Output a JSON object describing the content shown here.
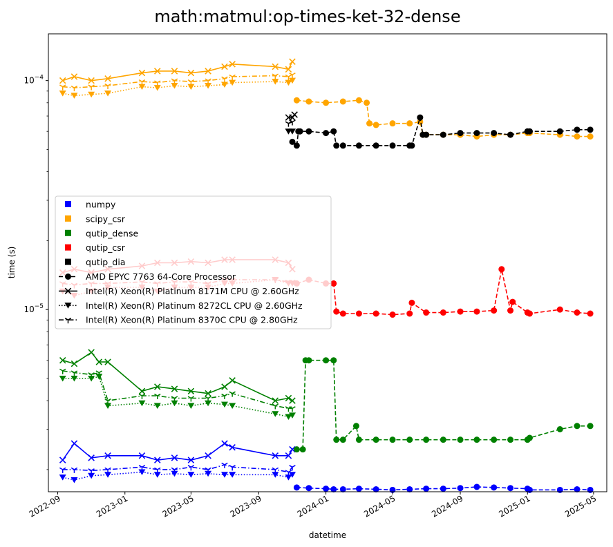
{
  "chart_data": {
    "type": "line",
    "title": "math:matmul:op-times-ket-32-dense",
    "xlabel": "datetime",
    "ylabel": "time (s)",
    "yscale": "log",
    "xlim": [
      "2022-08-15",
      "2025-05-25"
    ],
    "ylim": [
      1.6e-06,
      0.00016
    ],
    "x_tick_labels": [
      "2022-09",
      "2023-01",
      "2023-05",
      "2023-09",
      "2024-01",
      "2024-05",
      "2024-09",
      "2025-01",
      "2025-05"
    ],
    "y_tick_labels": [
      {
        "value": 1e-05,
        "base": "10",
        "exp": "−5"
      },
      {
        "value": 0.0001,
        "base": "10",
        "exp": "−4"
      }
    ],
    "grid": false,
    "legend_position": "center-left",
    "colors": {
      "numpy": "#0000ff",
      "scipy_csr": "#ffa500",
      "qutip_dense": "#008000",
      "qutip_csr": "#ff0000",
      "qutip_dia": "#000000"
    },
    "legend": [
      {
        "label": "numpy",
        "kind": "color",
        "color": "#0000ff"
      },
      {
        "label": "scipy_csr",
        "kind": "color",
        "color": "#ffa500"
      },
      {
        "label": "qutip_dense",
        "kind": "color",
        "color": "#008000"
      },
      {
        "label": "qutip_csr",
        "kind": "color",
        "color": "#ff0000"
      },
      {
        "label": "qutip_dia",
        "kind": "color",
        "color": "#000000"
      },
      {
        "label": "AMD EPYC 7763 64-Core Processor",
        "kind": "cpu",
        "dash": "dashed",
        "marker": "circle"
      },
      {
        "label": "Intel(R) Xeon(R) Platinum 8171M CPU @ 2.60GHz",
        "kind": "cpu",
        "dash": "solid",
        "marker": "x"
      },
      {
        "label": "Intel(R) Xeon(R) Platinum 8272CL CPU @ 2.60GHz",
        "kind": "cpu",
        "dash": "dotted",
        "marker": "triangle_down"
      },
      {
        "label": "Intel(R) Xeon(R) Platinum 8370C CPU @ 2.80GHz",
        "kind": "cpu",
        "dash": "dashdot",
        "marker": "tri_down"
      }
    ],
    "series": [
      {
        "library": "numpy",
        "cpu": "AMD EPYC 7763 64-Core Processor",
        "x": [
          "2023-11-09",
          "2023-12-01",
          "2024-01-01",
          "2024-01-15",
          "2024-02-01",
          "2024-03-01",
          "2024-04-01",
          "2024-05-01",
          "2024-06-01",
          "2024-07-01",
          "2024-08-01",
          "2024-09-01",
          "2024-10-01",
          "2024-11-01",
          "2024-12-01",
          "2025-01-01",
          "2025-01-05",
          "2025-03-01",
          "2025-04-01",
          "2025-04-25"
        ],
        "y": [
          1.67e-06,
          1.66e-06,
          1.65e-06,
          1.64e-06,
          1.64e-06,
          1.65e-06,
          1.64e-06,
          1.63e-06,
          1.64e-06,
          1.65e-06,
          1.65e-06,
          1.66e-06,
          1.68e-06,
          1.67e-06,
          1.66e-06,
          1.65e-06,
          1.63e-06,
          1.63e-06,
          1.64e-06,
          1.63e-06
        ]
      },
      {
        "library": "numpy",
        "cpu": "Intel(R) Xeon(R) Platinum 8171M CPU @ 2.60GHz",
        "x": [
          "2022-09-10",
          "2022-10-01",
          "2022-11-01",
          "2022-12-01",
          "2023-02-01",
          "2023-03-01",
          "2023-04-01",
          "2023-05-01",
          "2023-06-01",
          "2023-07-01",
          "2023-07-15",
          "2023-10-01",
          "2023-10-25",
          "2023-11-01"
        ],
        "y": [
          2.2e-06,
          2.6e-06,
          2.25e-06,
          2.3e-06,
          2.3e-06,
          2.2e-06,
          2.25e-06,
          2.2e-06,
          2.3e-06,
          2.6e-06,
          2.5e-06,
          2.3e-06,
          2.3e-06,
          2.45e-06
        ]
      },
      {
        "library": "numpy",
        "cpu": "Intel(R) Xeon(R) Platinum 8272CL CPU @ 2.60GHz",
        "x": [
          "2022-09-10",
          "2022-10-01",
          "2022-11-01",
          "2022-12-01",
          "2023-02-01",
          "2023-03-01",
          "2023-04-01",
          "2023-05-01",
          "2023-06-01",
          "2023-07-01",
          "2023-07-15",
          "2023-10-01",
          "2023-10-25",
          "2023-11-01"
        ],
        "y": [
          1.85e-06,
          1.8e-06,
          1.88e-06,
          1.9e-06,
          1.95e-06,
          1.9e-06,
          1.92e-06,
          1.9e-06,
          1.92e-06,
          1.9e-06,
          1.9e-06,
          1.9e-06,
          1.85e-06,
          1.9e-06
        ]
      },
      {
        "library": "numpy",
        "cpu": "Intel(R) Xeon(R) Platinum 8370C CPU @ 2.80GHz",
        "x": [
          "2022-09-10",
          "2022-10-01",
          "2022-11-01",
          "2022-12-01",
          "2023-02-01",
          "2023-03-01",
          "2023-04-01",
          "2023-05-01",
          "2023-06-01",
          "2023-07-01",
          "2023-07-15",
          "2023-10-01",
          "2023-10-25",
          "2023-11-01"
        ],
        "y": [
          2e-06,
          2e-06,
          1.98e-06,
          2e-06,
          2.05e-06,
          2e-06,
          2e-06,
          2.05e-06,
          2e-06,
          2.1e-06,
          2.05e-06,
          2e-06,
          1.95e-06,
          2.05e-06
        ]
      },
      {
        "library": "scipy_csr",
        "cpu": "AMD EPYC 7763 64-Core Processor",
        "x": [
          "2023-11-09",
          "2023-12-01",
          "2024-01-01",
          "2024-02-01",
          "2024-03-01",
          "2024-03-15",
          "2024-03-20",
          "2024-04-01",
          "2024-05-01",
          "2024-06-01",
          "2024-06-20",
          "2024-06-25",
          "2024-07-01",
          "2024-08-01",
          "2024-09-01",
          "2024-10-01",
          "2024-11-01",
          "2024-12-01",
          "2025-01-01",
          "2025-01-05",
          "2025-03-01",
          "2025-04-01",
          "2025-04-25"
        ],
        "y": [
          8.2e-05,
          8.1e-05,
          8e-05,
          8.1e-05,
          8.2e-05,
          8e-05,
          6.5e-05,
          6.4e-05,
          6.5e-05,
          6.5e-05,
          6.6e-05,
          5.8e-05,
          5.8e-05,
          5.8e-05,
          5.8e-05,
          5.7e-05,
          5.8e-05,
          5.8e-05,
          5.9e-05,
          5.9e-05,
          5.8e-05,
          5.7e-05,
          5.7e-05
        ]
      },
      {
        "library": "scipy_csr",
        "cpu": "Intel(R) Xeon(R) Platinum 8171M CPU @ 2.60GHz",
        "x": [
          "2022-09-10",
          "2022-10-01",
          "2022-11-01",
          "2022-12-01",
          "2023-02-01",
          "2023-03-01",
          "2023-04-01",
          "2023-05-01",
          "2023-06-01",
          "2023-07-01",
          "2023-07-15",
          "2023-10-01",
          "2023-10-25",
          "2023-11-01"
        ],
        "y": [
          0.0001,
          0.000104,
          0.0001,
          0.000102,
          0.000108,
          0.00011,
          0.00011,
          0.000108,
          0.00011,
          0.000115,
          0.000118,
          0.000115,
          0.000112,
          0.000121
        ]
      },
      {
        "library": "scipy_csr",
        "cpu": "Intel(R) Xeon(R) Platinum 8272CL CPU @ 2.60GHz",
        "x": [
          "2022-09-10",
          "2022-10-01",
          "2022-11-01",
          "2022-12-01",
          "2023-02-01",
          "2023-03-01",
          "2023-04-01",
          "2023-05-01",
          "2023-06-01",
          "2023-07-01",
          "2023-07-15",
          "2023-10-01",
          "2023-10-25",
          "2023-11-01"
        ],
        "y": [
          8.8e-05,
          8.6e-05,
          8.7e-05,
          8.8e-05,
          9.4e-05,
          9.3e-05,
          9.5e-05,
          9.4e-05,
          9.5e-05,
          9.6e-05,
          9.8e-05,
          9.9e-05,
          9.8e-05,
          0.0001
        ]
      },
      {
        "library": "scipy_csr",
        "cpu": "Intel(R) Xeon(R) Platinum 8370C CPU @ 2.80GHz",
        "x": [
          "2022-09-10",
          "2022-10-01",
          "2022-11-01",
          "2022-12-01",
          "2023-02-01",
          "2023-03-01",
          "2023-04-01",
          "2023-05-01",
          "2023-06-01",
          "2023-07-01",
          "2023-07-15",
          "2023-10-01",
          "2023-10-25",
          "2023-11-01"
        ],
        "y": [
          9.4e-05,
          9.3e-05,
          9.4e-05,
          9.5e-05,
          9.9e-05,
          9.8e-05,
          0.0001,
          9.9e-05,
          0.0001,
          0.000102,
          0.000104,
          0.000105,
          0.000104,
          0.000106
        ]
      },
      {
        "library": "qutip_dense",
        "cpu": "AMD EPYC 7763 64-Core Processor",
        "x": [
          "2023-11-09",
          "2023-11-20",
          "2023-11-25",
          "2023-12-01",
          "2024-01-01",
          "2024-01-15",
          "2024-01-20",
          "2024-02-01",
          "2024-02-25",
          "2024-03-01",
          "2024-04-01",
          "2024-05-01",
          "2024-06-01",
          "2024-07-01",
          "2024-08-01",
          "2024-09-01",
          "2024-10-01",
          "2024-11-01",
          "2024-12-01",
          "2025-01-01",
          "2025-01-05",
          "2025-03-01",
          "2025-04-01",
          "2025-04-25"
        ],
        "y": [
          2.45e-06,
          2.45e-06,
          6e-06,
          6e-06,
          6e-06,
          6e-06,
          2.7e-06,
          2.7e-06,
          3.1e-06,
          2.7e-06,
          2.7e-06,
          2.7e-06,
          2.7e-06,
          2.7e-06,
          2.7e-06,
          2.7e-06,
          2.7e-06,
          2.7e-06,
          2.7e-06,
          2.7e-06,
          2.75e-06,
          3e-06,
          3.1e-06,
          3.1e-06
        ]
      },
      {
        "library": "qutip_dense",
        "cpu": "Intel(R) Xeon(R) Platinum 8171M CPU @ 2.60GHz",
        "x": [
          "2022-09-10",
          "2022-10-01",
          "2022-11-01",
          "2022-11-15",
          "2022-12-01",
          "2023-02-01",
          "2023-03-01",
          "2023-04-01",
          "2023-05-01",
          "2023-06-01",
          "2023-07-01",
          "2023-07-15",
          "2023-10-01",
          "2023-10-25",
          "2023-11-01"
        ],
        "y": [
          6e-06,
          5.8e-06,
          6.5e-06,
          5.9e-06,
          5.9e-06,
          4.4e-06,
          4.6e-06,
          4.5e-06,
          4.4e-06,
          4.3e-06,
          4.6e-06,
          4.9e-06,
          4e-06,
          4.1e-06,
          4e-06
        ]
      },
      {
        "library": "qutip_dense",
        "cpu": "Intel(R) Xeon(R) Platinum 8272CL CPU @ 2.60GHz",
        "x": [
          "2022-09-10",
          "2022-10-01",
          "2022-11-01",
          "2022-11-15",
          "2022-12-01",
          "2023-02-01",
          "2023-03-01",
          "2023-04-01",
          "2023-05-01",
          "2023-06-01",
          "2023-07-01",
          "2023-07-15",
          "2023-10-01",
          "2023-10-25",
          "2023-11-01"
        ],
        "y": [
          5e-06,
          5e-06,
          5e-06,
          5.1e-06,
          3.8e-06,
          3.9e-06,
          3.8e-06,
          3.9e-06,
          3.8e-06,
          3.9e-06,
          3.85e-06,
          3.8e-06,
          3.5e-06,
          3.4e-06,
          3.45e-06
        ]
      },
      {
        "library": "qutip_dense",
        "cpu": "Intel(R) Xeon(R) Platinum 8370C CPU @ 2.80GHz",
        "x": [
          "2022-09-10",
          "2022-10-01",
          "2022-11-01",
          "2022-11-15",
          "2022-12-01",
          "2023-02-01",
          "2023-03-01",
          "2023-04-01",
          "2023-05-01",
          "2023-06-01",
          "2023-07-01",
          "2023-07-15",
          "2023-10-01",
          "2023-10-25",
          "2023-11-01"
        ],
        "y": [
          5.4e-06,
          5.3e-06,
          5.2e-06,
          5.3e-06,
          4e-06,
          4.2e-06,
          4.2e-06,
          4.1e-06,
          4.1e-06,
          4.1e-06,
          4.2e-06,
          4.3e-06,
          3.8e-06,
          3.7e-06,
          3.7e-06
        ]
      },
      {
        "library": "qutip_csr",
        "cpu": "AMD EPYC 7763 64-Core Processor",
        "x": [
          "2023-11-09",
          "2023-12-01",
          "2024-01-01",
          "2024-01-15",
          "2024-01-20",
          "2024-02-01",
          "2024-03-01",
          "2024-04-01",
          "2024-05-01",
          "2024-06-01",
          "2024-06-05",
          "2024-07-01",
          "2024-08-01",
          "2024-09-01",
          "2024-10-01",
          "2024-11-01",
          "2024-11-15",
          "2024-12-01",
          "2024-12-05",
          "2025-01-01",
          "2025-01-05",
          "2025-03-01",
          "2025-04-01",
          "2025-04-25"
        ],
        "y": [
          1.3e-05,
          1.35e-05,
          1.3e-05,
          1.3e-05,
          9.8e-06,
          9.6e-06,
          9.6e-06,
          9.6e-06,
          9.5e-06,
          9.6e-06,
          1.07e-05,
          9.7e-06,
          9.7e-06,
          9.8e-06,
          9.8e-06,
          9.9e-06,
          1.5e-05,
          9.9e-06,
          1.08e-05,
          9.7e-06,
          9.6e-06,
          1e-05,
          9.7e-06,
          9.6e-06
        ]
      },
      {
        "library": "qutip_csr",
        "cpu": "Intel(R) Xeon(R) Platinum 8171M CPU @ 2.60GHz",
        "x": [
          "2022-09-10",
          "2022-10-01",
          "2022-11-01",
          "2022-12-01",
          "2023-02-01",
          "2023-03-01",
          "2023-04-01",
          "2023-05-01",
          "2023-06-01",
          "2023-07-01",
          "2023-07-15",
          "2023-10-01",
          "2023-10-25",
          "2023-11-01"
        ],
        "y": [
          1.45e-05,
          1.5e-05,
          1.45e-05,
          1.5e-05,
          1.55e-05,
          1.6e-05,
          1.6e-05,
          1.62e-05,
          1.6e-05,
          1.65e-05,
          1.65e-05,
          1.65e-05,
          1.6e-05,
          1.5e-05
        ]
      },
      {
        "library": "qutip_csr",
        "cpu": "Intel(R) Xeon(R) Platinum 8272CL CPU @ 2.60GHz",
        "x": [
          "2022-09-10",
          "2022-10-01",
          "2022-11-01",
          "2022-12-01",
          "2023-02-01",
          "2023-03-01",
          "2023-04-01",
          "2023-05-01",
          "2023-06-01",
          "2023-07-01",
          "2023-07-15",
          "2023-10-01",
          "2023-10-25",
          "2023-11-01"
        ],
        "y": [
          1.2e-05,
          1.15e-05,
          1.2e-05,
          1.25e-05,
          1.25e-05,
          1.2e-05,
          1.25e-05,
          1.25e-05,
          1.25e-05,
          1.3e-05,
          1.3e-05,
          1.35e-05,
          1.3e-05,
          1.3e-05
        ]
      },
      {
        "library": "qutip_csr",
        "cpu": "Intel(R) Xeon(R) Platinum 8370C CPU @ 2.80GHz",
        "x": [
          "2022-09-10",
          "2022-10-01",
          "2022-11-01",
          "2022-12-01",
          "2023-02-01",
          "2023-03-01",
          "2023-04-01",
          "2023-05-01",
          "2023-06-01",
          "2023-07-01",
          "2023-07-15",
          "2023-10-01",
          "2023-10-25",
          "2023-11-01"
        ],
        "y": [
          1.3e-05,
          1.28e-05,
          1.3e-05,
          1.3e-05,
          1.32e-05,
          1.3e-05,
          1.32e-05,
          1.32e-05,
          1.3e-05,
          1.35e-05,
          1.35e-05,
          1.35e-05,
          1.32e-05,
          1.32e-05
        ]
      },
      {
        "library": "qutip_dia",
        "cpu": "AMD EPYC 7763 64-Core Processor",
        "x": [
          "2023-11-01",
          "2023-11-09",
          "2023-11-12",
          "2023-11-15",
          "2023-12-01",
          "2024-01-01",
          "2024-01-15",
          "2024-01-20",
          "2024-02-01",
          "2024-03-01",
          "2024-04-01",
          "2024-05-01",
          "2024-06-01",
          "2024-06-05",
          "2024-06-20",
          "2024-06-25",
          "2024-07-01",
          "2024-08-01",
          "2024-09-01",
          "2024-10-01",
          "2024-11-01",
          "2024-12-01",
          "2025-01-01",
          "2025-01-05",
          "2025-03-01",
          "2025-04-01",
          "2025-04-25"
        ],
        "y": [
          5.4e-05,
          5.2e-05,
          6e-05,
          6e-05,
          6e-05,
          5.9e-05,
          6e-05,
          5.2e-05,
          5.2e-05,
          5.2e-05,
          5.2e-05,
          5.2e-05,
          5.2e-05,
          5.2e-05,
          6.9e-05,
          5.8e-05,
          5.8e-05,
          5.8e-05,
          5.9e-05,
          5.9e-05,
          5.9e-05,
          5.8e-05,
          6e-05,
          6e-05,
          6e-05,
          6.1e-05,
          6.1e-05
        ]
      },
      {
        "library": "qutip_dia",
        "cpu": "Intel(R) Xeon(R) Platinum 8171M CPU @ 2.60GHz",
        "x": [
          "2023-10-25",
          "2023-11-01",
          "2023-11-05"
        ],
        "y": [
          6.9e-05,
          6.9e-05,
          7.1e-05
        ]
      },
      {
        "library": "qutip_dia",
        "cpu": "Intel(R) Xeon(R) Platinum 8272CL CPU @ 2.60GHz",
        "x": [
          "2023-10-25",
          "2023-11-01"
        ],
        "y": [
          6e-05,
          6e-05
        ]
      },
      {
        "library": "qutip_dia",
        "cpu": "Intel(R) Xeon(R) Platinum 8370C CPU @ 2.80GHz",
        "x": [
          "2023-10-25",
          "2023-11-01"
        ],
        "y": [
          6.5e-05,
          6.6e-05
        ]
      }
    ]
  }
}
